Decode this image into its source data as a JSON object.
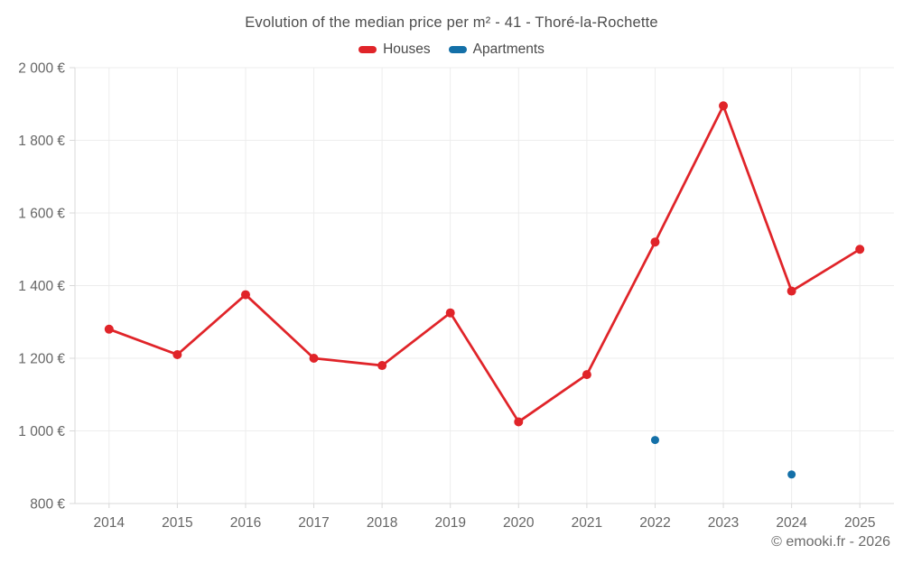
{
  "chart_data": {
    "type": "line",
    "title": "Evolution of the median price per m² - 41 - Thoré-la-Rochette",
    "categories": [
      "2014",
      "2015",
      "2016",
      "2017",
      "2018",
      "2019",
      "2020",
      "2021",
      "2022",
      "2023",
      "2024",
      "2025"
    ],
    "series": [
      {
        "name": "Houses",
        "color": "#e02429",
        "line": true,
        "marker_radius": 5,
        "values": [
          1280,
          1210,
          1375,
          1200,
          1180,
          1325,
          1025,
          1155,
          1520,
          1895,
          1385,
          1500
        ]
      },
      {
        "name": "Apartments",
        "color": "#1470a8",
        "line": false,
        "marker_radius": 4.5,
        "values": [
          null,
          null,
          null,
          null,
          null,
          null,
          null,
          null,
          975,
          null,
          880,
          null
        ]
      }
    ],
    "xlabel": "",
    "ylabel": "",
    "ylim": [
      800,
      2000
    ],
    "yticks": [
      800,
      1000,
      1200,
      1400,
      1600,
      1800,
      2000
    ],
    "ytick_labels": [
      "800 €",
      "1 000 €",
      "1 200 €",
      "1 400 €",
      "1 600 €",
      "1 800 €",
      "2 000 €"
    ],
    "grid": true,
    "legend_position": "top"
  },
  "footer": {
    "copyright": "© emooki.fr - 2026"
  },
  "colors": {
    "background": "#ffffff",
    "grid": "#ededed",
    "axis": "#d9d9d9",
    "tick_text": "#666666",
    "title_text": "#4d4d4d",
    "legend_text": "#4a4a4a",
    "footer_text": "#6b6b6b",
    "houses": "#e02429",
    "apartments": "#1470a8"
  }
}
